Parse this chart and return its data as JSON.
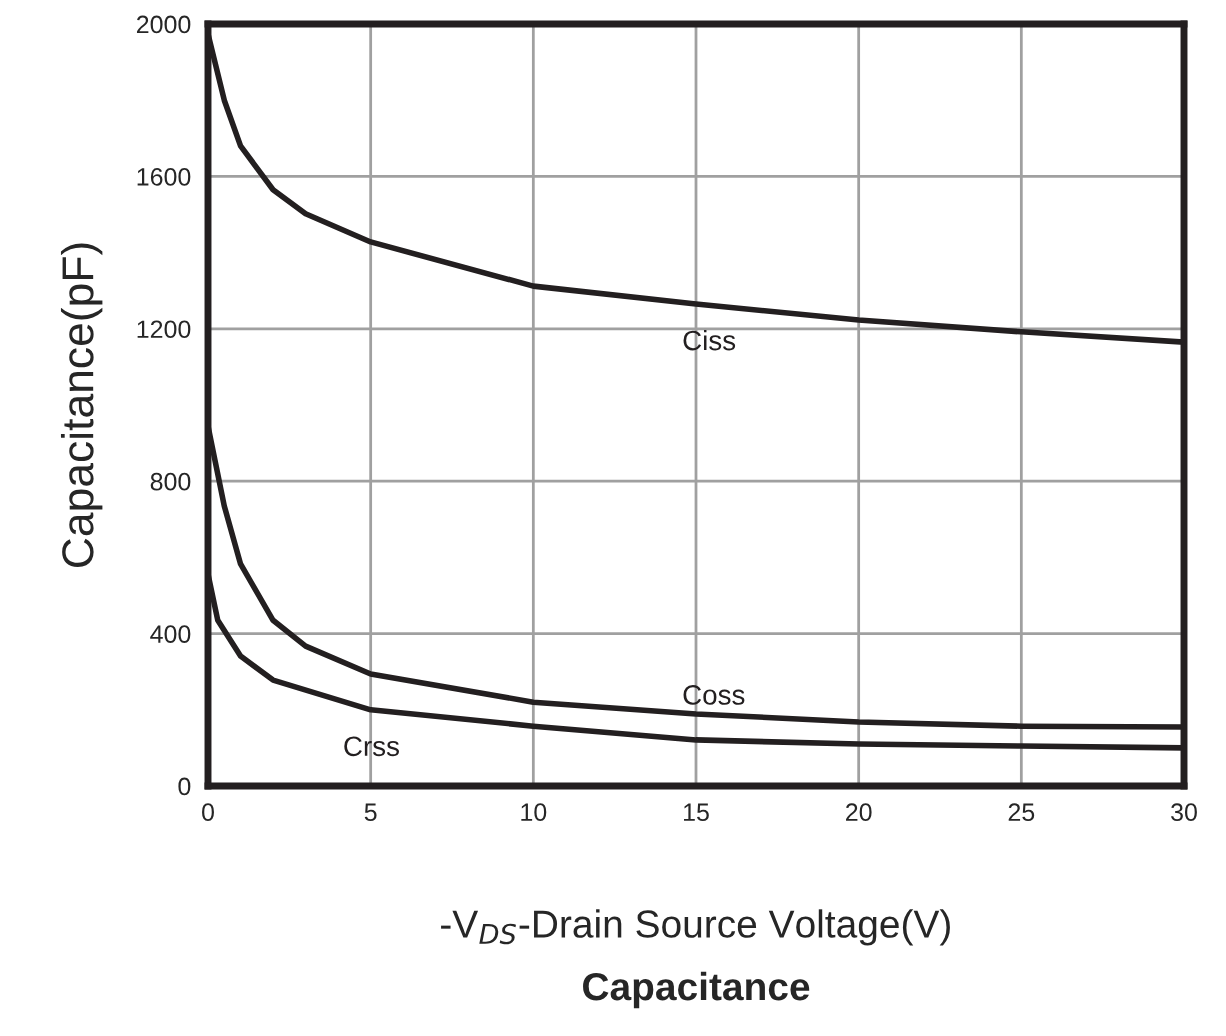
{
  "chart_data": {
    "type": "line",
    "title": "Capacitance",
    "xlabel": "-V$_{DS}$-Drain Source Voltage(V)",
    "ylabel": "Capacitance(pF)",
    "x": [
      0,
      0.5,
      1,
      2,
      3,
      5,
      10,
      15,
      20,
      25,
      30
    ],
    "series": [
      {
        "name": "Ciss",
        "color": "#231f20",
        "values": [
          1974,
          1800,
          1680,
          1565,
          1502,
          1428,
          1312,
          1265,
          1223,
          1192,
          1165
        ]
      },
      {
        "name": "Coss",
        "color": "#231f20",
        "values": [
          945,
          735,
          583,
          435,
          367,
          294,
          220,
          189,
          168,
          157,
          155
        ]
      },
      {
        "name": "Crss",
        "color": "#231f20",
        "x": [
          0,
          0.3,
          1,
          2,
          5,
          10,
          15,
          20,
          25,
          30
        ],
        "values": [
          556,
          435,
          341,
          278,
          200,
          157,
          121,
          110,
          105,
          100
        ]
      }
    ],
    "xlim": [
      0,
      30
    ],
    "xticks": [
      0,
      5,
      10,
      15,
      20,
      25,
      30
    ],
    "ylim": [
      0,
      2000
    ],
    "yticks": [
      0,
      400,
      800,
      1200,
      1600,
      2000
    ],
    "grid": true,
    "marker": "none",
    "line_style": "solid",
    "legend": false
  }
}
